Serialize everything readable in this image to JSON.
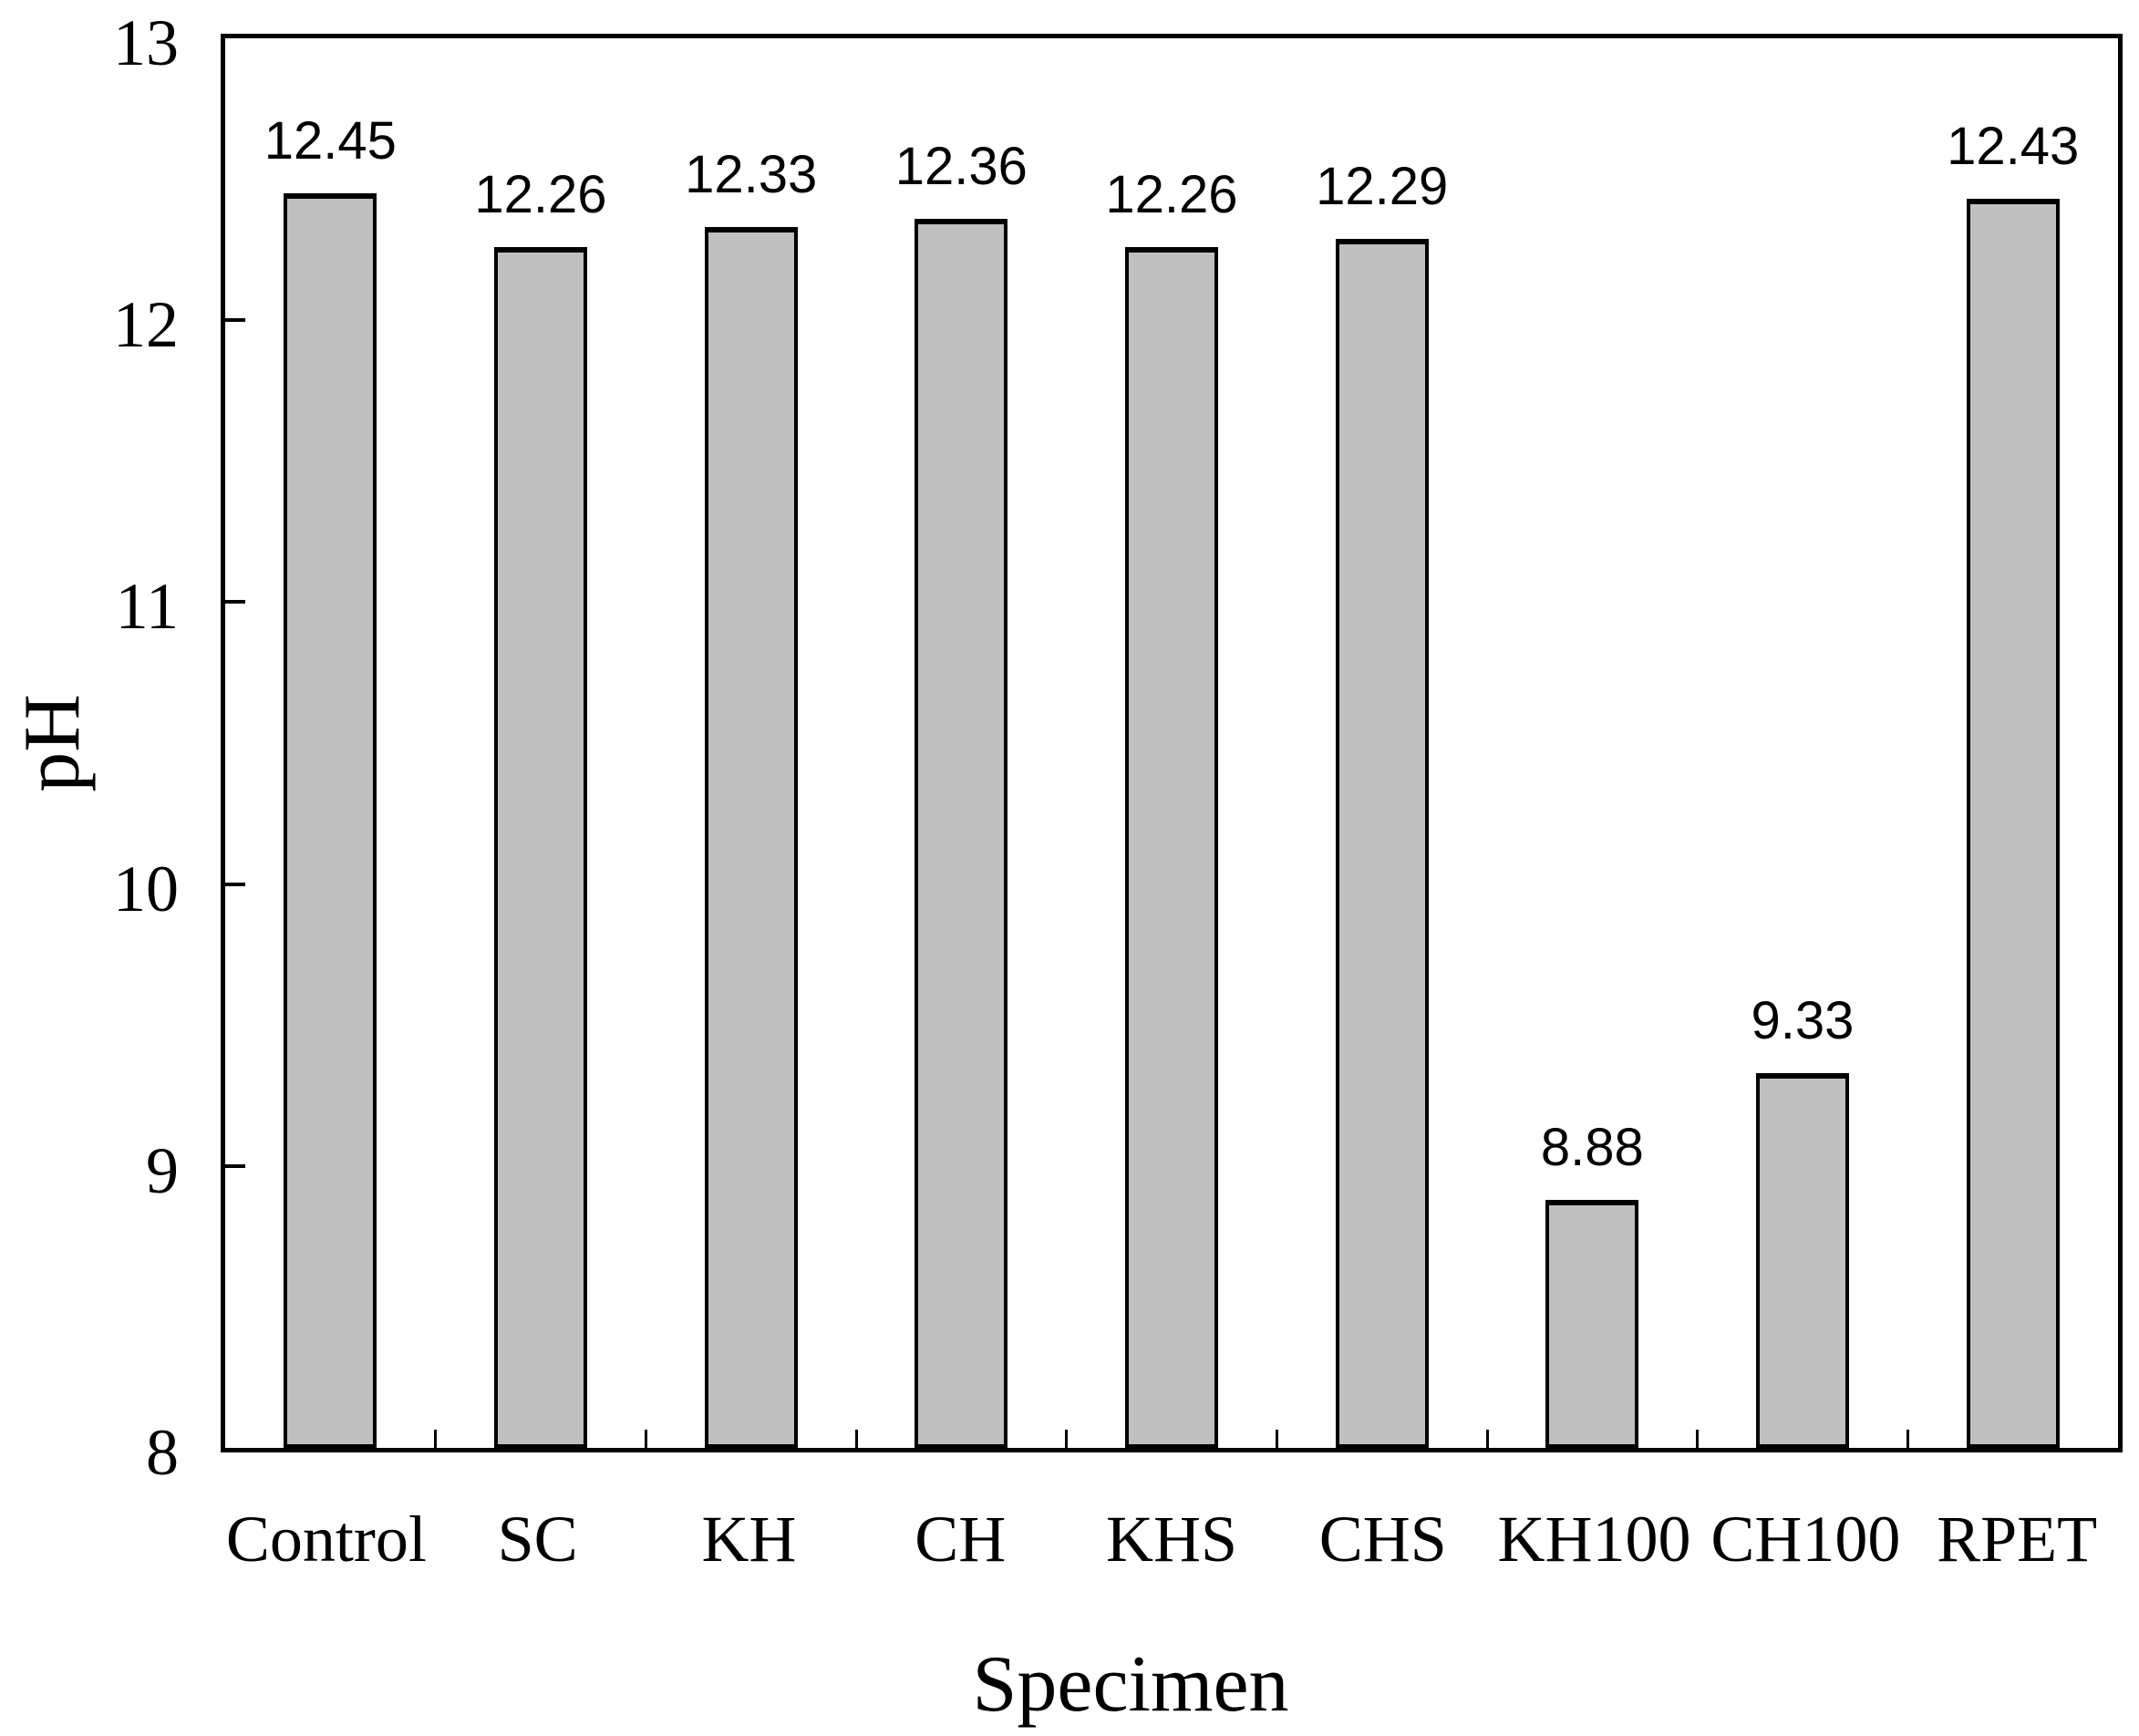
{
  "chart_data": {
    "type": "bar",
    "xlabel": "Specimen",
    "ylabel": "pH",
    "categories": [
      "Control",
      "SC",
      "KH",
      "CH",
      "KHS",
      "CHS",
      "KH100",
      "CH100",
      "RPET"
    ],
    "values": [
      12.45,
      12.26,
      12.33,
      12.36,
      12.26,
      12.29,
      8.88,
      9.33,
      12.43
    ],
    "value_labels": [
      "12.45",
      "12.26",
      "12.33",
      "12.36",
      "12.26",
      "12.29",
      "8.88",
      "9.33",
      "12.43"
    ],
    "ylim": [
      8,
      13
    ],
    "yticks": [
      8,
      9,
      10,
      11,
      12,
      13
    ],
    "grid": false,
    "legend": "none",
    "frame": true,
    "colors": {
      "bar_fill": "#c0c0c0",
      "bar_border": "#000000",
      "axis": "#000000",
      "background": "#ffffff"
    }
  }
}
